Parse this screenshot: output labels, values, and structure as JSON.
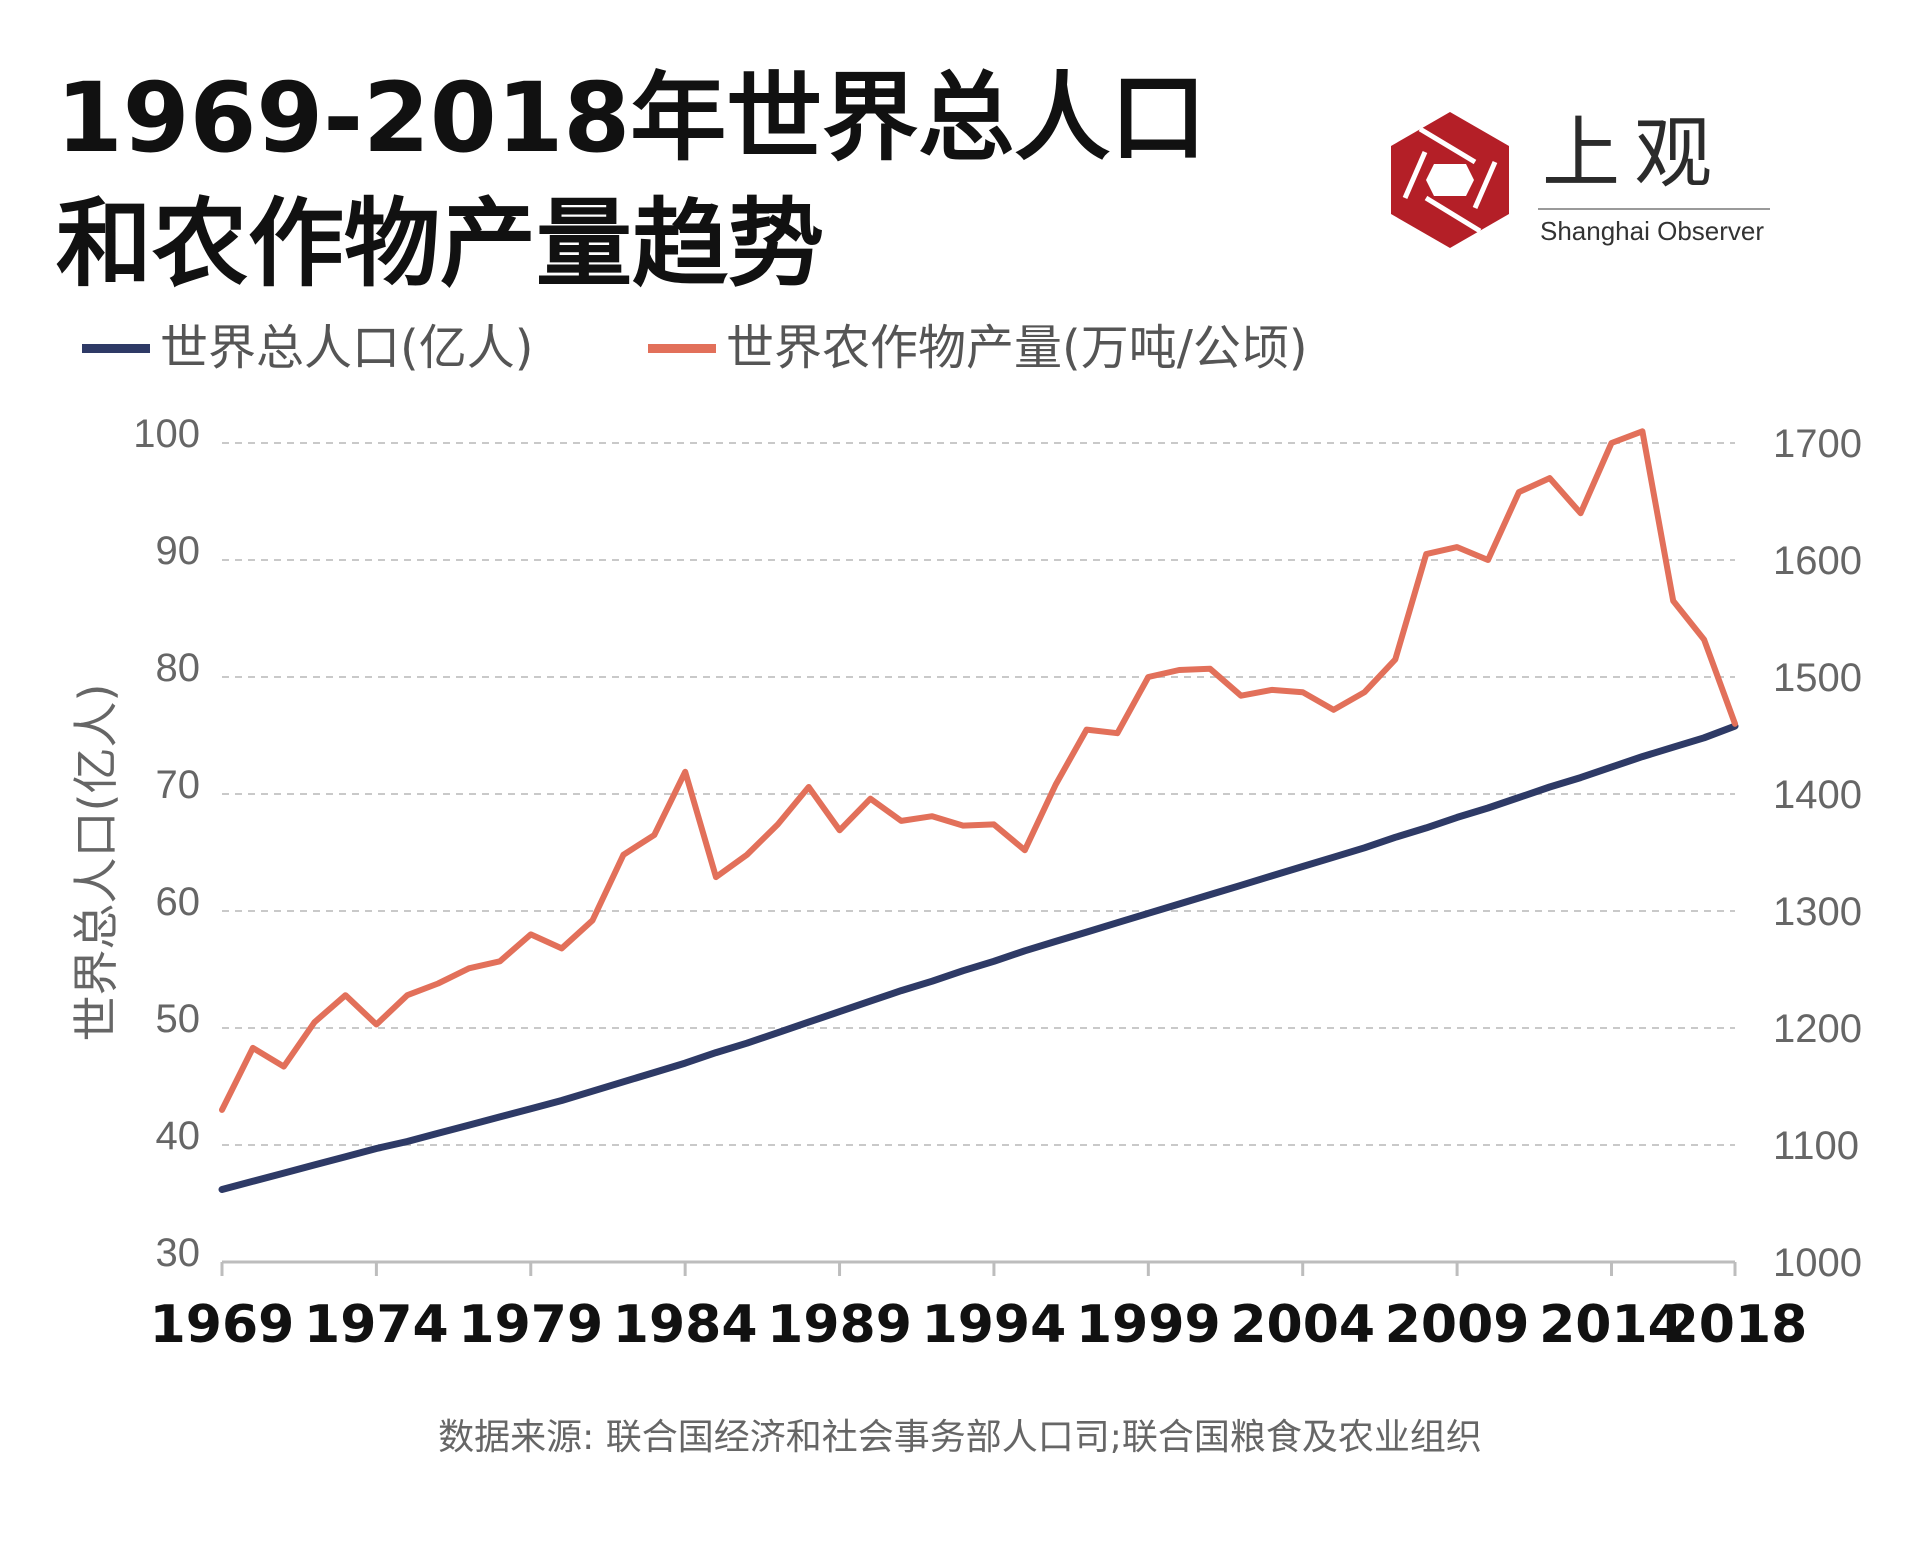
{
  "title": {
    "line1": "1969-2018年世界总人口",
    "line2": "和农作物产量趋势"
  },
  "logo": {
    "cn": "上观",
    "en": "Shanghai Observer",
    "icon": "hexagon-aperture-logo",
    "color": "#b41f27"
  },
  "source": "数据来源: 联合国经济和社会事务部人口司;联合国粮食及农业组织",
  "chart_data": {
    "type": "line",
    "x": [
      1969,
      1970,
      1971,
      1972,
      1973,
      1974,
      1975,
      1976,
      1977,
      1978,
      1979,
      1980,
      1981,
      1982,
      1983,
      1984,
      1985,
      1986,
      1987,
      1988,
      1989,
      1990,
      1991,
      1992,
      1993,
      1994,
      1995,
      1996,
      1997,
      1998,
      1999,
      2000,
      2001,
      2002,
      2003,
      2004,
      2005,
      2006,
      2007,
      2008,
      2009,
      2010,
      2011,
      2012,
      2013,
      2014,
      2015,
      2016,
      2017,
      2018
    ],
    "xticks": [
      "1969",
      "1974",
      "1979",
      "1984",
      "1989",
      "1994",
      "1999",
      "2004",
      "2009",
      "2014",
      "2018"
    ],
    "xtick_values": [
      1969,
      1974,
      1979,
      1984,
      1989,
      1994,
      1999,
      2004,
      2009,
      2014,
      2018
    ],
    "xlim": [
      1969,
      2018
    ],
    "ylabel": "世界总人口(亿人)",
    "ylim": [
      30,
      100
    ],
    "yticks": [
      "100",
      "90",
      "80",
      "70",
      "60",
      "50",
      "40",
      "30"
    ],
    "ytick_values": [
      100,
      90,
      80,
      70,
      60,
      50,
      40,
      30
    ],
    "y2lim": [
      1000,
      1700
    ],
    "y2ticks": [
      "1700",
      "1600",
      "1500",
      "1400",
      "1300",
      "1200",
      "1100",
      "1000"
    ],
    "y2tick_values": [
      1700,
      1600,
      1500,
      1400,
      1300,
      1200,
      1100,
      1000
    ],
    "grid": "horizontal dashed",
    "legend_position": "top-left",
    "series": [
      {
        "name": "世界总人口(亿人)",
        "axis": "left",
        "color": "#2e3a66",
        "values": [
          36.2,
          36.9,
          37.6,
          38.3,
          39.0,
          39.7,
          40.3,
          41.0,
          41.7,
          42.4,
          43.1,
          43.8,
          44.6,
          45.4,
          46.2,
          47.0,
          47.9,
          48.7,
          49.6,
          50.5,
          51.4,
          52.3,
          53.2,
          54.0,
          54.9,
          55.7,
          56.6,
          57.4,
          58.2,
          59.0,
          59.8,
          60.6,
          61.4,
          62.2,
          63.0,
          63.8,
          64.6,
          65.4,
          66.3,
          67.1,
          68.0,
          68.8,
          69.7,
          70.6,
          71.4,
          72.3,
          73.2,
          74.0,
          74.8,
          75.8
        ]
      },
      {
        "name": "世界农作物产量(万吨/公顷)",
        "axis": "right",
        "color": "#e2705a",
        "values": [
          1130,
          1183,
          1167,
          1205,
          1228,
          1203,
          1228,
          1238,
          1251,
          1257,
          1280,
          1268,
          1292,
          1348,
          1365,
          1419,
          1329,
          1348,
          1374,
          1406,
          1369,
          1396,
          1377,
          1381,
          1373,
          1374,
          1352,
          1408,
          1455,
          1452,
          1500,
          1506,
          1507,
          1484,
          1489,
          1487,
          1472,
          1487,
          1515,
          1605,
          1611,
          1600,
          1658,
          1670,
          1640,
          1700,
          1710,
          1565,
          1532,
          1460
        ]
      }
    ]
  }
}
